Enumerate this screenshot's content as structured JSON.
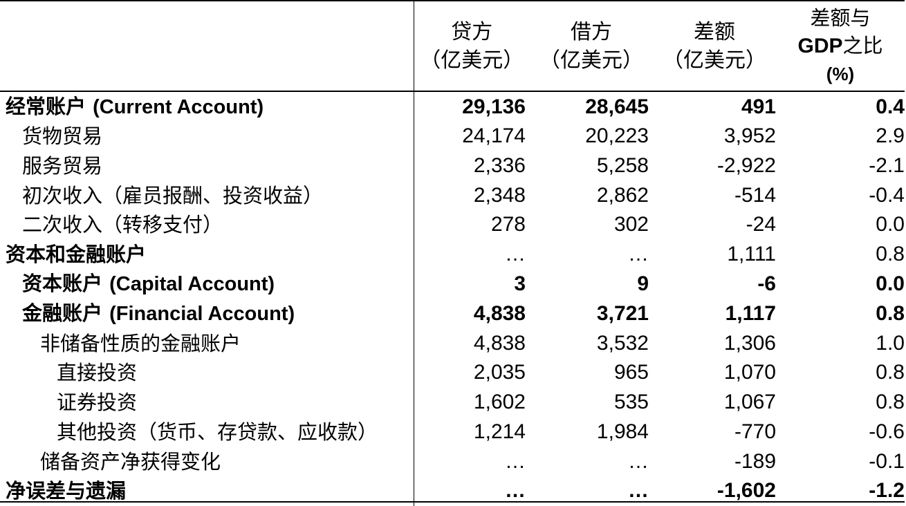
{
  "table": {
    "headers": {
      "label": "",
      "credit": [
        "贷方",
        "（亿美元）"
      ],
      "debit": [
        "借方",
        "（亿美元）"
      ],
      "balance": [
        "差额",
        "（亿美元）"
      ],
      "ratio": [
        "差额与",
        "GDP",
        "之比",
        "(%)"
      ]
    },
    "rows": [
      {
        "label": "经常账户 ",
        "label_en": "(Current Account)",
        "credit": "29,136",
        "debit": "28,645",
        "balance": "491",
        "ratio": "0.4"
      },
      {
        "label": "货物贸易",
        "credit": "24,174",
        "debit": "20,223",
        "balance": "3,952",
        "ratio": "2.9"
      },
      {
        "label": "服务贸易",
        "credit": "2,336",
        "debit": "5,258",
        "balance": "-2,922",
        "ratio": "-2.1"
      },
      {
        "label": "初次收入（雇员报酬、投资收益）",
        "credit": "2,348",
        "debit": "2,862",
        "balance": "-514",
        "ratio": "-0.4"
      },
      {
        "label": "二次收入（转移支付）",
        "credit": "278",
        "debit": "302",
        "balance": "-24",
        "ratio": "0.0"
      },
      {
        "label": "资本和金融账户",
        "credit": "…",
        "debit": "…",
        "balance": "1,111",
        "ratio": "0.8"
      },
      {
        "label": "资本账户 ",
        "label_en": "(Capital Account)",
        "credit": "3",
        "debit": "9",
        "balance": "-6",
        "ratio": "0.0"
      },
      {
        "label": "金融账户 ",
        "label_en": "(Financial Account)",
        "credit": "4,838",
        "debit": "3,721",
        "balance": "1,117",
        "ratio": "0.8"
      },
      {
        "label": "非储备性质的金融账户",
        "credit": "4,838",
        "debit": "3,532",
        "balance": "1,306",
        "ratio": "1.0"
      },
      {
        "label": "直接投资",
        "credit": "2,035",
        "debit": "965",
        "balance": "1,070",
        "ratio": "0.8"
      },
      {
        "label": "证券投资",
        "credit": "1,602",
        "debit": "535",
        "balance": "1,067",
        "ratio": "0.8"
      },
      {
        "label": "其他投资（货币、存贷款、应收款）",
        "credit": "1,214",
        "debit": "1,984",
        "balance": "-770",
        "ratio": "-0.6"
      },
      {
        "label": "储备资产净获得变化",
        "credit": "…",
        "debit": "…",
        "balance": "-189",
        "ratio": "-0.1"
      },
      {
        "label": "净误差与遗漏",
        "credit": "…",
        "debit": "…",
        "balance": "-1,602",
        "ratio": "-1.2"
      }
    ]
  }
}
